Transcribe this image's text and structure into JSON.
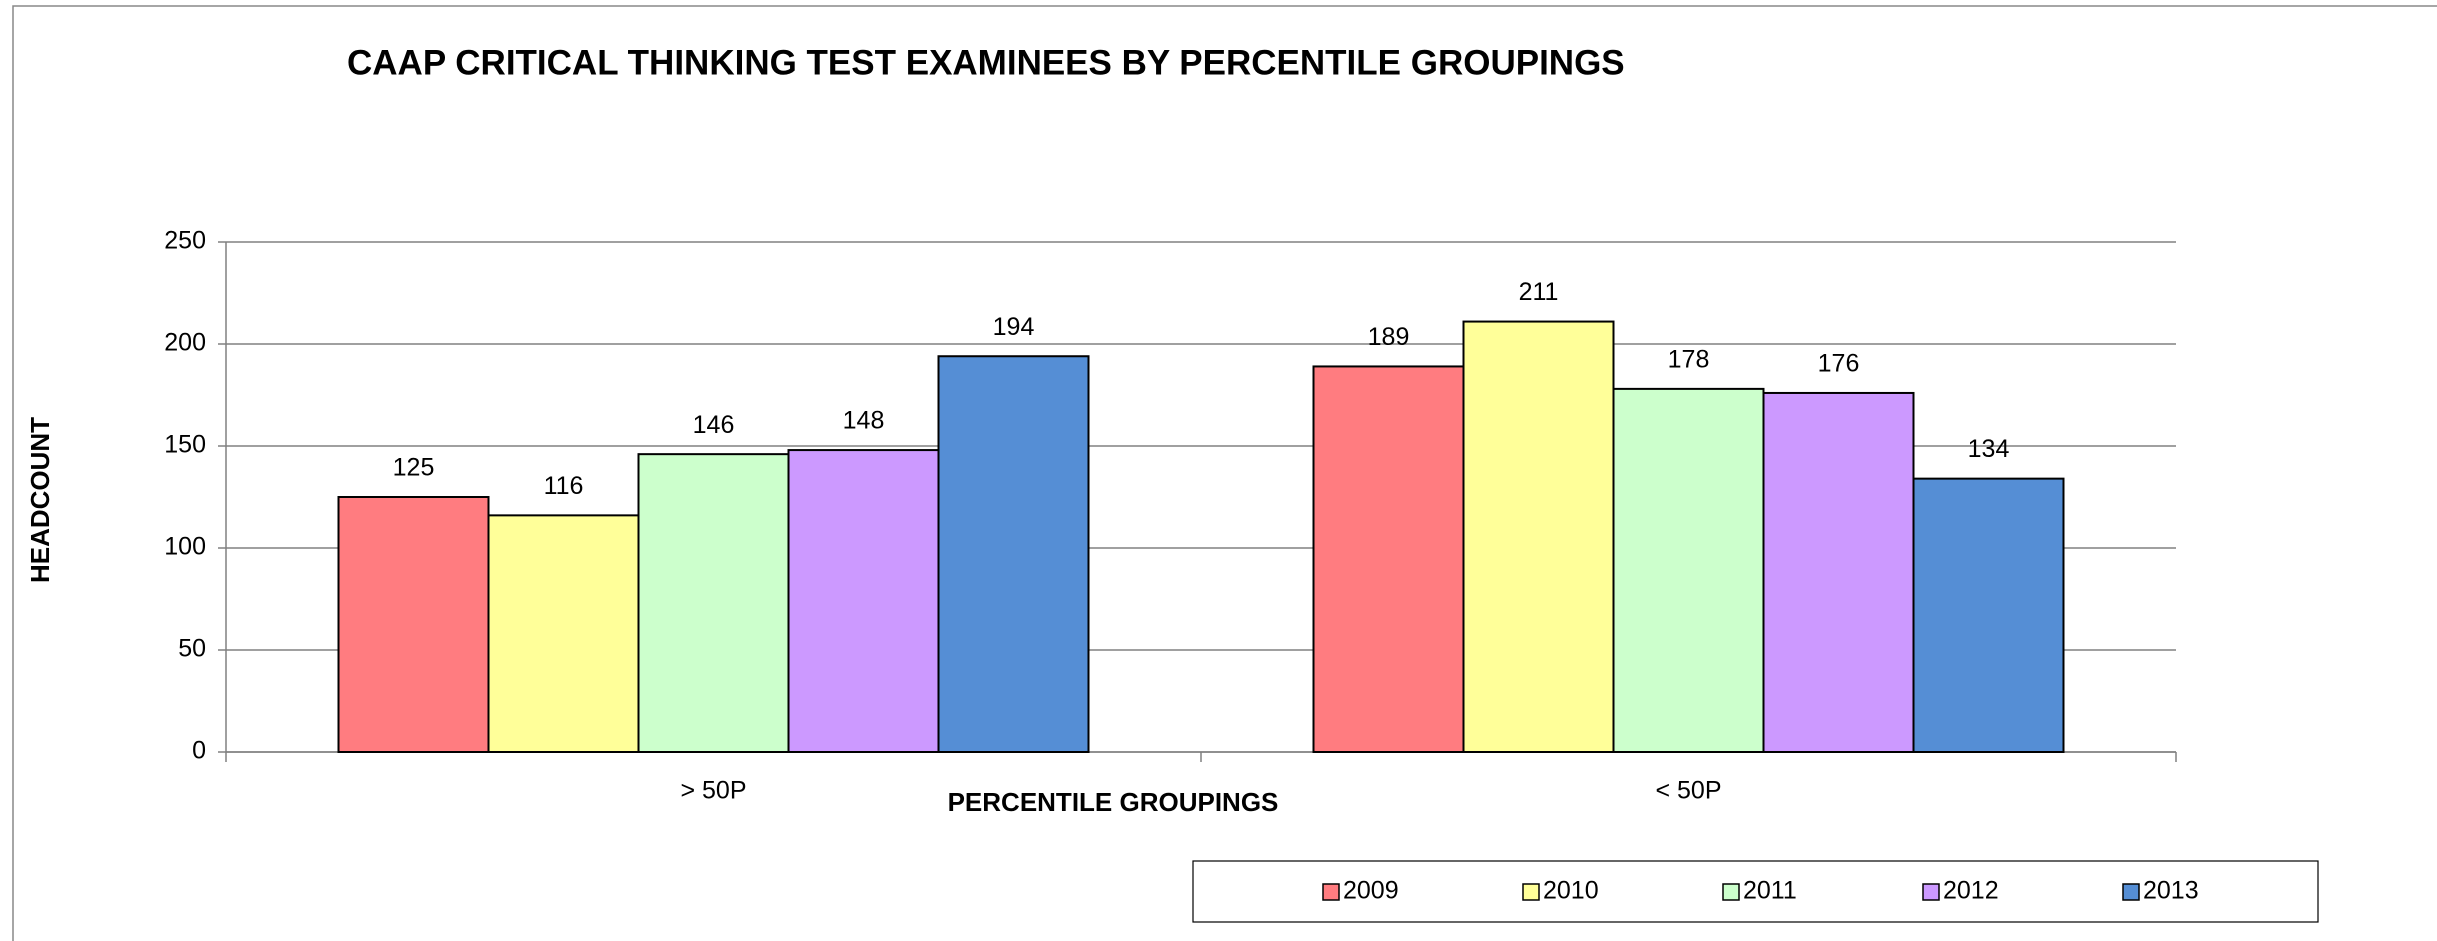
{
  "chart_data": {
    "type": "bar",
    "title": "CAAP CRITICAL THINKING TEST EXAMINEES BY PERCENTILE GROUPINGS",
    "x_label": "PERCENTILE GROUPINGS",
    "y_label": "HEADCOUNT",
    "categories": [
      "> 50P",
      "< 50P"
    ],
    "series": [
      {
        "name": "2009",
        "color": "#ff7c80",
        "values": [
          125,
          189
        ]
      },
      {
        "name": "2010",
        "color": "#ffff99",
        "values": [
          116,
          211
        ]
      },
      {
        "name": "2011",
        "color": "#ccffcc",
        "values": [
          146,
          178
        ]
      },
      {
        "name": "2012",
        "color": "#cc99ff",
        "values": [
          148,
          176
        ]
      },
      {
        "name": "2013",
        "color": "#558ed5",
        "values": [
          194,
          134
        ]
      }
    ],
    "ylim": [
      0,
      250
    ],
    "yticks": [
      0,
      50,
      100,
      150,
      200,
      250
    ],
    "grid": true,
    "legend": "bottom"
  }
}
